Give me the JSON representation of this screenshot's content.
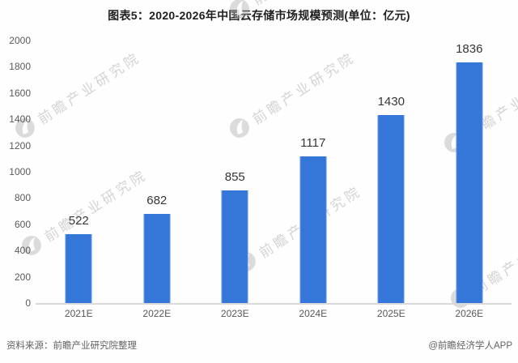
{
  "figure": {
    "title": "图表5：2020-2026年中国云存储市场规模预测(单位：亿元)",
    "source_note": "资料来源：前瞻产业研究院整理",
    "credit": "@前瞻经济学人APP",
    "watermark_text": "前瞻产业研究院"
  },
  "colors": {
    "bar": "#3577d9",
    "axis_text": "#595959",
    "value_text": "#363636",
    "title_text": "#1f1f1f",
    "baseline": "#d9d9d9",
    "watermark": "#adadad"
  },
  "chart_data": {
    "type": "bar",
    "title": "图表5：2020-2026年中国云存储市场规模预测(单位：亿元)",
    "unit": "亿元",
    "categories": [
      "2021E",
      "2022E",
      "2023E",
      "2024E",
      "2025E",
      "2026E"
    ],
    "values": [
      522,
      682,
      855,
      1117,
      1430,
      1836
    ],
    "xlabel": "",
    "ylabel": "",
    "ylim": [
      0,
      2000
    ],
    "ytick_step": 200,
    "grid": false,
    "legend": false,
    "bar_color": "#3577d9"
  }
}
